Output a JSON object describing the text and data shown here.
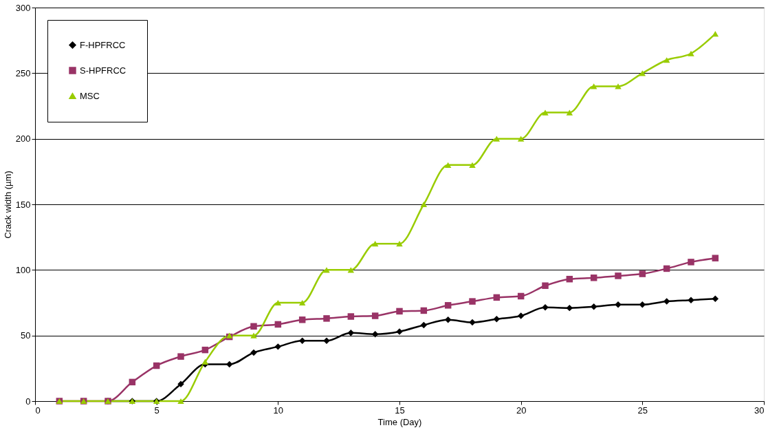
{
  "chart_data": {
    "type": "line",
    "xlabel": "Time (Day)",
    "ylabel": "Crack width (µm)",
    "x": [
      1,
      2,
      3,
      4,
      5,
      6,
      7,
      8,
      9,
      10,
      11,
      12,
      13,
      14,
      15,
      16,
      17,
      18,
      19,
      20,
      21,
      22,
      23,
      24,
      25,
      26,
      27,
      28
    ],
    "series": [
      {
        "name": "F-HPFRCC",
        "color": "#000000",
        "marker": "diamond",
        "values": [
          null,
          null,
          0,
          0,
          0,
          13,
          28,
          28,
          37,
          41.5,
          46,
          46,
          52,
          51,
          53,
          58,
          62,
          60,
          62.5,
          65,
          71.5,
          71,
          72,
          73.5,
          73.5,
          76,
          77,
          78
        ]
      },
      {
        "name": "S-HPFRCC",
        "color": "#993366",
        "marker": "square",
        "values": [
          0,
          0,
          0,
          14.5,
          27,
          34,
          39,
          49,
          57,
          58.5,
          62,
          63,
          64.5,
          65,
          68.5,
          69,
          73,
          76,
          79,
          80,
          88,
          93,
          94,
          95.5,
          97,
          101,
          106,
          109
        ]
      },
      {
        "name": "MSC",
        "color": "#99cc00",
        "marker": "triangle",
        "values": [
          0,
          0,
          0,
          0,
          0,
          0,
          30,
          50,
          50,
          75,
          75,
          100,
          100,
          120,
          120,
          150,
          180,
          180,
          200,
          200,
          220,
          220,
          240,
          240,
          250,
          260,
          265,
          280
        ]
      }
    ],
    "xlim": [
      0,
      30
    ],
    "xticks": [
      0,
      5,
      10,
      15,
      20,
      25,
      30
    ],
    "ylim": [
      0,
      300
    ],
    "yticks": [
      0,
      50,
      100,
      150,
      200,
      250,
      300
    ],
    "grid": "y",
    "legend": "top left",
    "line_style": "solid"
  }
}
